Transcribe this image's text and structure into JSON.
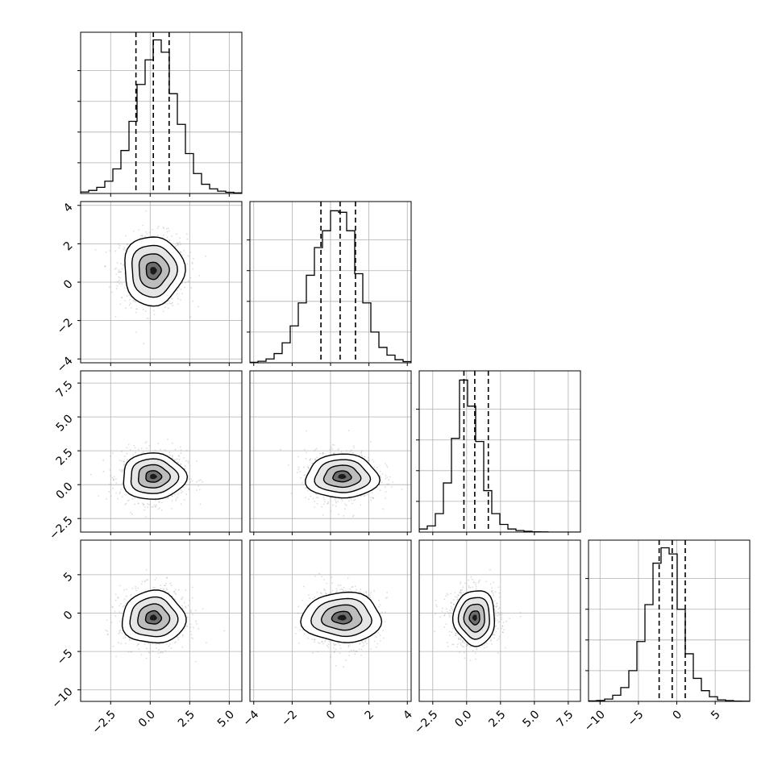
{
  "chart_data": {
    "type": "corner",
    "grid": true,
    "variables": [
      {
        "range": [
          -4.4,
          5.8
        ],
        "ticks": [
          -2.5,
          0.0,
          2.5,
          5.0
        ],
        "tick_labels": [
          "−2.5",
          "0.0",
          "2.5",
          "5.0"
        ],
        "quantiles": [
          -0.9,
          0.2,
          1.2
        ],
        "hist": [
          0.01,
          0.02,
          0.04,
          0.08,
          0.16,
          0.28,
          0.47,
          0.71,
          0.87,
          1.0,
          0.92,
          0.65,
          0.45,
          0.26,
          0.13,
          0.06,
          0.03,
          0.015,
          0.008,
          0.004
        ],
        "center": [
          0.2,
          0.6
        ],
        "sigma": 1.0
      },
      {
        "range": [
          -4.2,
          4.2
        ],
        "ticks": [
          -4,
          -2,
          0,
          2,
          4
        ],
        "tick_labels": [
          "−4",
          "−2",
          "0",
          "2",
          "4"
        ],
        "quantiles": [
          -0.5,
          0.5,
          1.3
        ],
        "hist": [
          0.003,
          0.01,
          0.025,
          0.06,
          0.13,
          0.24,
          0.39,
          0.57,
          0.75,
          0.86,
          0.99,
          0.98,
          0.86,
          0.58,
          0.39,
          0.2,
          0.1,
          0.05,
          0.02,
          0.008
        ],
        "center": [
          0.6,
          0.6
        ],
        "sigma": 0.9
      },
      {
        "range": [
          -3.5,
          8.4
        ],
        "ticks": [
          -2.5,
          0.0,
          2.5,
          5.0,
          7.5
        ],
        "tick_labels": [
          "−2.5",
          "0.0",
          "2.5",
          "5.0",
          "7.5"
        ],
        "quantiles": [
          -0.2,
          0.6,
          1.6
        ],
        "hist": [
          0.02,
          0.04,
          0.12,
          0.32,
          0.61,
          0.99,
          0.82,
          0.59,
          0.27,
          0.12,
          0.05,
          0.02,
          0.01,
          0.005,
          0.002,
          0.001,
          0.0,
          0.0,
          0.0,
          0.0
        ],
        "center": [
          0.6,
          0.6
        ],
        "sigma": 0.9
      },
      {
        "range": [
          -11.5,
          9.5
        ],
        "ticks": [
          -10,
          -5,
          0,
          5
        ],
        "tick_labels": [
          "−10",
          "−5",
          "0",
          "5"
        ],
        "quantiles": [
          -2.3,
          -0.6,
          1.1
        ],
        "hist": [
          0.003,
          0.006,
          0.015,
          0.04,
          0.09,
          0.2,
          0.39,
          0.63,
          0.9,
          1.0,
          0.96,
          0.6,
          0.31,
          0.15,
          0.07,
          0.03,
          0.01,
          0.005,
          0.002,
          0.001
        ],
        "center": [
          -0.6,
          -0.6
        ],
        "sigma": 1.8
      }
    ],
    "pair_widths": {
      "1-0": [
        0.95,
        1.0
      ],
      "2-0": [
        1.0,
        0.95
      ],
      "2-1": [
        1.05,
        0.9
      ],
      "3-0": [
        1.0,
        0.95
      ],
      "3-1": [
        1.15,
        0.9
      ],
      "3-2": [
        0.85,
        1.0
      ]
    }
  }
}
